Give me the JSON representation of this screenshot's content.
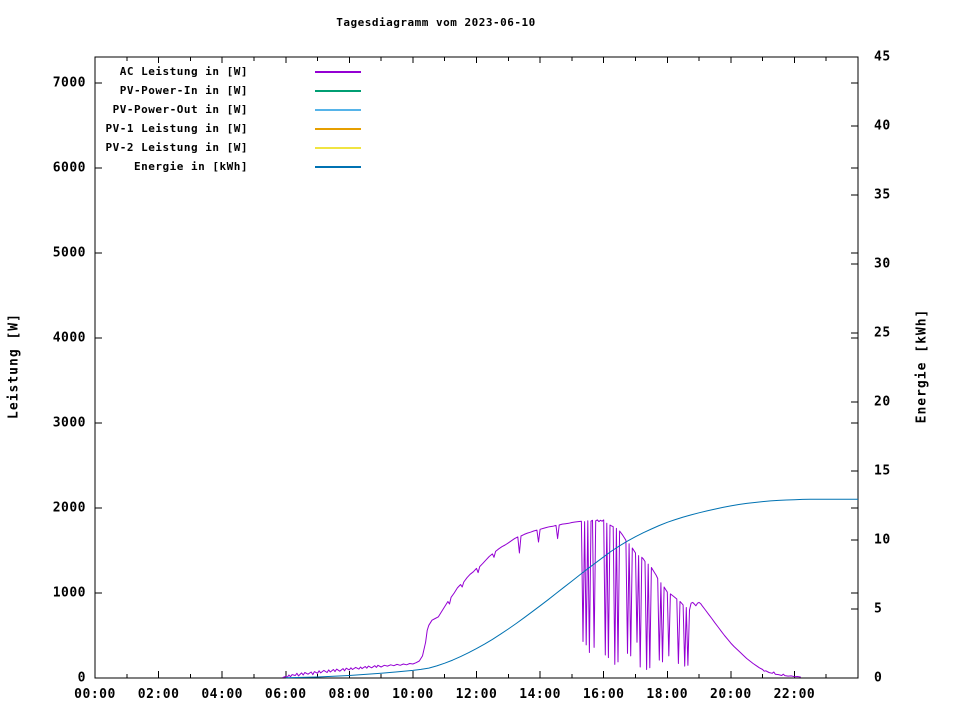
{
  "chart_data": {
    "type": "line",
    "title": "Tagesdiagramm vom 2023-06-10",
    "xlabel": "",
    "ylabel_left": "Leistung [W]",
    "ylabel_right": "Energie [kWh]",
    "x_unit": "time of day (hours)",
    "xlim": [
      0,
      24
    ],
    "x_major_ticks": [
      0,
      2,
      4,
      6,
      8,
      10,
      12,
      14,
      16,
      18,
      20,
      22
    ],
    "x_major_tick_labels": [
      "00:00",
      "02:00",
      "04:00",
      "06:00",
      "08:00",
      "10:00",
      "12:00",
      "14:00",
      "16:00",
      "18:00",
      "20:00",
      "22:00"
    ],
    "x_minor_tick_step_hours": 1,
    "ylim_left": [
      0,
      7300
    ],
    "y_ticks_left": [
      0,
      1000,
      2000,
      3000,
      4000,
      5000,
      6000,
      7000
    ],
    "ylim_right": [
      0,
      45
    ],
    "y_ticks_right": [
      0,
      5,
      10,
      15,
      20,
      25,
      30,
      35,
      40,
      45
    ],
    "grid": false,
    "legend_position": "inside-top-left",
    "series": [
      {
        "name": "ac-leistung",
        "label": "AC Leistung in [W]",
        "color": "#9400d3",
        "axis": "left",
        "points": [
          [
            5.9,
            5
          ],
          [
            6.0,
            20
          ],
          [
            6.05,
            8
          ],
          [
            6.1,
            35
          ],
          [
            6.15,
            15
          ],
          [
            6.2,
            40
          ],
          [
            6.3,
            30
          ],
          [
            6.35,
            55
          ],
          [
            6.4,
            25
          ],
          [
            6.5,
            60
          ],
          [
            6.55,
            35
          ],
          [
            6.6,
            65
          ],
          [
            6.7,
            45
          ],
          [
            6.8,
            70
          ],
          [
            6.85,
            40
          ],
          [
            6.9,
            75
          ],
          [
            7.0,
            55
          ],
          [
            7.05,
            85
          ],
          [
            7.1,
            60
          ],
          [
            7.2,
            90
          ],
          [
            7.3,
            65
          ],
          [
            7.35,
            95
          ],
          [
            7.4,
            70
          ],
          [
            7.5,
            100
          ],
          [
            7.55,
            75
          ],
          [
            7.6,
            105
          ],
          [
            7.7,
            80
          ],
          [
            7.8,
            110
          ],
          [
            7.85,
            85
          ],
          [
            7.9,
            115
          ],
          [
            8.0,
            95
          ],
          [
            8.05,
            120
          ],
          [
            8.1,
            100
          ],
          [
            8.2,
            125
          ],
          [
            8.3,
            105
          ],
          [
            8.35,
            130
          ],
          [
            8.4,
            110
          ],
          [
            8.5,
            135
          ],
          [
            8.55,
            115
          ],
          [
            8.6,
            140
          ],
          [
            8.7,
            120
          ],
          [
            8.8,
            145
          ],
          [
            8.85,
            125
          ],
          [
            8.9,
            150
          ],
          [
            9.0,
            130
          ],
          [
            9.1,
            150
          ],
          [
            9.2,
            140
          ],
          [
            9.3,
            155
          ],
          [
            9.4,
            145
          ],
          [
            9.5,
            160
          ],
          [
            9.6,
            150
          ],
          [
            9.7,
            165
          ],
          [
            9.8,
            155
          ],
          [
            9.9,
            170
          ],
          [
            10.0,
            165
          ],
          [
            10.1,
            180
          ],
          [
            10.2,
            200
          ],
          [
            10.3,
            260
          ],
          [
            10.4,
            420
          ],
          [
            10.45,
            560
          ],
          [
            10.5,
            620
          ],
          [
            10.6,
            680
          ],
          [
            10.7,
            700
          ],
          [
            10.8,
            720
          ],
          [
            10.9,
            780
          ],
          [
            11.0,
            840
          ],
          [
            11.1,
            900
          ],
          [
            11.15,
            870
          ],
          [
            11.2,
            950
          ],
          [
            11.3,
            1000
          ],
          [
            11.4,
            1060
          ],
          [
            11.5,
            1100
          ],
          [
            11.55,
            1070
          ],
          [
            11.6,
            1130
          ],
          [
            11.7,
            1180
          ],
          [
            11.8,
            1220
          ],
          [
            11.9,
            1250
          ],
          [
            12.0,
            1290
          ],
          [
            12.05,
            1240
          ],
          [
            12.1,
            1310
          ],
          [
            12.2,
            1350
          ],
          [
            12.3,
            1390
          ],
          [
            12.4,
            1430
          ],
          [
            12.5,
            1460
          ],
          [
            12.55,
            1420
          ],
          [
            12.6,
            1490
          ],
          [
            12.7,
            1520
          ],
          [
            12.8,
            1545
          ],
          [
            12.9,
            1565
          ],
          [
            13.0,
            1590
          ],
          [
            13.1,
            1615
          ],
          [
            13.2,
            1640
          ],
          [
            13.3,
            1660
          ],
          [
            13.35,
            1470
          ],
          [
            13.4,
            1670
          ],
          [
            13.5,
            1690
          ],
          [
            13.6,
            1705
          ],
          [
            13.7,
            1715
          ],
          [
            13.8,
            1730
          ],
          [
            13.9,
            1740
          ],
          [
            13.95,
            1600
          ],
          [
            14.0,
            1750
          ],
          [
            14.1,
            1760
          ],
          [
            14.2,
            1770
          ],
          [
            14.3,
            1780
          ],
          [
            14.4,
            1785
          ],
          [
            14.5,
            1795
          ],
          [
            14.55,
            1640
          ],
          [
            14.6,
            1800
          ],
          [
            14.7,
            1810
          ],
          [
            14.8,
            1815
          ],
          [
            14.9,
            1820
          ],
          [
            15.0,
            1830
          ],
          [
            15.1,
            1835
          ],
          [
            15.2,
            1840
          ],
          [
            15.3,
            1845
          ],
          [
            15.35,
            430
          ],
          [
            15.4,
            1840
          ],
          [
            15.45,
            390
          ],
          [
            15.5,
            1850
          ],
          [
            15.55,
            300
          ],
          [
            15.6,
            1845
          ],
          [
            15.65,
            1855
          ],
          [
            15.7,
            360
          ],
          [
            15.75,
            1850
          ],
          [
            15.8,
            1860
          ],
          [
            15.85,
            1840
          ],
          [
            15.9,
            1855
          ],
          [
            15.95,
            1845
          ],
          [
            16.0,
            1860
          ],
          [
            16.05,
            270
          ],
          [
            16.1,
            1820
          ],
          [
            16.15,
            240
          ],
          [
            16.2,
            1800
          ],
          [
            16.25,
            1790
          ],
          [
            16.3,
            1780
          ],
          [
            16.35,
            160
          ],
          [
            16.4,
            1760
          ],
          [
            16.45,
            190
          ],
          [
            16.5,
            1730
          ],
          [
            16.6,
            1680
          ],
          [
            16.65,
            1650
          ],
          [
            16.7,
            1620
          ],
          [
            16.75,
            290
          ],
          [
            16.8,
            1580
          ],
          [
            16.85,
            260
          ],
          [
            16.9,
            1530
          ],
          [
            16.95,
            1500
          ],
          [
            17.0,
            1470
          ],
          [
            17.05,
            420
          ],
          [
            17.1,
            1440
          ],
          [
            17.15,
            130
          ],
          [
            17.2,
            1420
          ],
          [
            17.25,
            1400
          ],
          [
            17.3,
            1370
          ],
          [
            17.35,
            100
          ],
          [
            17.4,
            1340
          ],
          [
            17.45,
            120
          ],
          [
            17.5,
            1300
          ],
          [
            17.6,
            1240
          ],
          [
            17.65,
            1210
          ],
          [
            17.7,
            1170
          ],
          [
            17.75,
            210
          ],
          [
            17.8,
            1120
          ],
          [
            17.85,
            190
          ],
          [
            17.9,
            1070
          ],
          [
            17.95,
            1040
          ],
          [
            18.0,
            1010
          ],
          [
            18.05,
            260
          ],
          [
            18.1,
            990
          ],
          [
            18.2,
            960
          ],
          [
            18.3,
            930
          ],
          [
            18.35,
            170
          ],
          [
            18.4,
            900
          ],
          [
            18.45,
            880
          ],
          [
            18.5,
            860
          ],
          [
            18.55,
            140
          ],
          [
            18.6,
            830
          ],
          [
            18.65,
            150
          ],
          [
            18.7,
            800
          ],
          [
            18.75,
            880
          ],
          [
            18.8,
            890
          ],
          [
            18.85,
            870
          ],
          [
            18.9,
            850
          ],
          [
            18.95,
            880
          ],
          [
            19.0,
            890
          ],
          [
            19.05,
            875
          ],
          [
            19.1,
            850
          ],
          [
            19.2,
            800
          ],
          [
            19.3,
            750
          ],
          [
            19.4,
            700
          ],
          [
            19.5,
            650
          ],
          [
            19.6,
            600
          ],
          [
            19.7,
            550
          ],
          [
            19.8,
            500
          ],
          [
            19.9,
            455
          ],
          [
            20.0,
            410
          ],
          [
            20.1,
            370
          ],
          [
            20.2,
            335
          ],
          [
            20.3,
            300
          ],
          [
            20.4,
            265
          ],
          [
            20.5,
            230
          ],
          [
            20.6,
            200
          ],
          [
            20.7,
            170
          ],
          [
            20.8,
            145
          ],
          [
            20.9,
            120
          ],
          [
            21.0,
            100
          ],
          [
            21.05,
            80
          ],
          [
            21.1,
            85
          ],
          [
            21.2,
            65
          ],
          [
            21.3,
            55
          ],
          [
            21.35,
            70
          ],
          [
            21.4,
            45
          ],
          [
            21.5,
            40
          ],
          [
            21.6,
            30
          ],
          [
            21.65,
            45
          ],
          [
            21.7,
            28
          ],
          [
            21.8,
            22
          ],
          [
            21.9,
            25
          ],
          [
            22.0,
            15
          ],
          [
            22.1,
            18
          ],
          [
            22.2,
            10
          ]
        ]
      },
      {
        "name": "pv-power-in",
        "label": "PV-Power-In in [W]",
        "color": "#009e73",
        "axis": "left",
        "points": []
      },
      {
        "name": "pv-power-out",
        "label": "PV-Power-Out in [W]",
        "color": "#56b4e9",
        "axis": "left",
        "points": []
      },
      {
        "name": "pv1-leistung",
        "label": "PV-1 Leistung in [W]",
        "color": "#e69f00",
        "axis": "left",
        "points": []
      },
      {
        "name": "pv2-leistung",
        "label": "PV-2 Leistung in [W]",
        "color": "#f0e442",
        "axis": "left",
        "points": []
      },
      {
        "name": "energie",
        "label": "Energie in [kWh]",
        "color": "#0072b2",
        "axis": "right",
        "points": [
          [
            6,
            0.02
          ],
          [
            6.5,
            0.04
          ],
          [
            7,
            0.07
          ],
          [
            7.5,
            0.12
          ],
          [
            8,
            0.18
          ],
          [
            8.5,
            0.26
          ],
          [
            9,
            0.34
          ],
          [
            9.5,
            0.44
          ],
          [
            10,
            0.55
          ],
          [
            10.25,
            0.62
          ],
          [
            10.5,
            0.72
          ],
          [
            10.75,
            0.88
          ],
          [
            11,
            1.07
          ],
          [
            11.25,
            1.3
          ],
          [
            11.5,
            1.55
          ],
          [
            11.75,
            1.83
          ],
          [
            12,
            2.13
          ],
          [
            12.25,
            2.45
          ],
          [
            12.5,
            2.8
          ],
          [
            12.75,
            3.17
          ],
          [
            13,
            3.55
          ],
          [
            13.25,
            3.95
          ],
          [
            13.5,
            4.37
          ],
          [
            13.75,
            4.8
          ],
          [
            14,
            5.23
          ],
          [
            14.25,
            5.67
          ],
          [
            14.5,
            6.12
          ],
          [
            14.75,
            6.57
          ],
          [
            15,
            7.02
          ],
          [
            15.25,
            7.47
          ],
          [
            15.5,
            7.92
          ],
          [
            15.75,
            8.35
          ],
          [
            16,
            8.78
          ],
          [
            16.25,
            9.2
          ],
          [
            16.5,
            9.58
          ],
          [
            16.75,
            9.92
          ],
          [
            17,
            10.24
          ],
          [
            17.25,
            10.53
          ],
          [
            17.5,
            10.8
          ],
          [
            17.75,
            11.05
          ],
          [
            18,
            11.28
          ],
          [
            18.25,
            11.48
          ],
          [
            18.5,
            11.66
          ],
          [
            18.75,
            11.82
          ],
          [
            19,
            11.97
          ],
          [
            19.25,
            12.11
          ],
          [
            19.5,
            12.24
          ],
          [
            19.75,
            12.36
          ],
          [
            20,
            12.47
          ],
          [
            20.25,
            12.57
          ],
          [
            20.5,
            12.65
          ],
          [
            20.75,
            12.72
          ],
          [
            21,
            12.78
          ],
          [
            21.25,
            12.83
          ],
          [
            21.5,
            12.87
          ],
          [
            21.75,
            12.9
          ],
          [
            22,
            12.92
          ],
          [
            22.25,
            12.94
          ],
          [
            22.5,
            12.95
          ],
          [
            23,
            12.95
          ],
          [
            23.5,
            12.95
          ],
          [
            24,
            12.95
          ]
        ]
      }
    ]
  }
}
